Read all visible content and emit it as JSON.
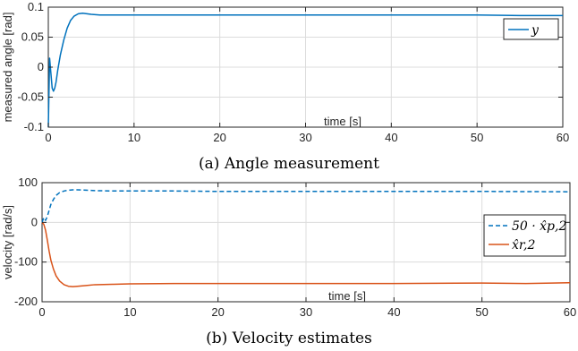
{
  "chart_data": [
    {
      "type": "line",
      "caption": "(a) Angle measurement",
      "xlabel": "time [s]",
      "ylabel": "measured angle [rad]",
      "xlim": [
        0,
        60
      ],
      "ylim": [
        -0.1,
        0.1
      ],
      "xticks": [
        0,
        10,
        20,
        30,
        40,
        50,
        60
      ],
      "yticks": [
        -0.1,
        -0.05,
        0,
        0.05,
        0.1
      ],
      "xtick_labels": [
        "0",
        "10",
        "20",
        "30",
        "40",
        "50",
        "60"
      ],
      "ytick_labels": [
        "-0.1",
        "-0.05",
        "0",
        "0.05",
        "0.1"
      ],
      "grid": true,
      "legend_position": "top-right",
      "series": [
        {
          "name": "y",
          "color": "#0072BD",
          "dash": "solid",
          "x": [
            0,
            0.15,
            0.3,
            0.45,
            0.6,
            0.75,
            0.9,
            1.1,
            1.4,
            1.8,
            2.2,
            2.6,
            3.0,
            3.5,
            4.0,
            4.5,
            5.0,
            6,
            8,
            10,
            15,
            20,
            25,
            30,
            35,
            40,
            45,
            50,
            55,
            60
          ],
          "y": [
            -0.1,
            0.015,
            -0.01,
            -0.035,
            -0.04,
            -0.035,
            -0.025,
            -0.005,
            0.02,
            0.045,
            0.065,
            0.078,
            0.085,
            0.089,
            0.09,
            0.089,
            0.088,
            0.087,
            0.087,
            0.087,
            0.087,
            0.087,
            0.087,
            0.087,
            0.087,
            0.087,
            0.087,
            0.087,
            0.086,
            0.086
          ]
        }
      ]
    },
    {
      "type": "line",
      "caption": "(b) Velocity estimates",
      "xlabel": "time [s]",
      "ylabel": "velocity [rad/s]",
      "xlim": [
        0,
        60
      ],
      "ylim": [
        -200,
        100
      ],
      "xticks": [
        0,
        10,
        20,
        30,
        40,
        50,
        60
      ],
      "yticks": [
        -200,
        -100,
        0,
        100
      ],
      "xtick_labels": [
        "0",
        "10",
        "20",
        "30",
        "40",
        "50",
        "60"
      ],
      "ytick_labels": [
        "-200",
        "-100",
        "0",
        "100"
      ],
      "grid": true,
      "legend_position": "right",
      "series": [
        {
          "name": "50 · x̂p,2",
          "color": "#0072BD",
          "dash": "dashed",
          "x": [
            0,
            0.2,
            0.4,
            0.6,
            0.8,
            1.0,
            1.3,
            1.6,
            2.0,
            2.5,
            3.0,
            3.5,
            4,
            5,
            6,
            8,
            10,
            15,
            20,
            30,
            40,
            50,
            60
          ],
          "y": [
            0,
            12,
            5,
            15,
            30,
            45,
            58,
            68,
            75,
            79,
            81,
            82,
            82,
            81,
            80,
            79,
            79,
            79,
            78,
            78,
            78,
            78,
            77
          ]
        },
        {
          "name": "x̂r,2",
          "color": "#D95319",
          "dash": "solid",
          "x": [
            0,
            0.2,
            0.4,
            0.6,
            0.8,
            1.0,
            1.3,
            1.6,
            2.0,
            2.5,
            3.0,
            3.5,
            4,
            5,
            6,
            8,
            10,
            15,
            20,
            30,
            40,
            50,
            55,
            58,
            60
          ],
          "y": [
            0,
            -5,
            -20,
            -45,
            -72,
            -95,
            -118,
            -135,
            -148,
            -157,
            -161,
            -162,
            -161,
            -159,
            -157,
            -156,
            -155,
            -154,
            -154,
            -154,
            -154,
            -153,
            -154,
            -153,
            -152
          ]
        }
      ]
    }
  ]
}
